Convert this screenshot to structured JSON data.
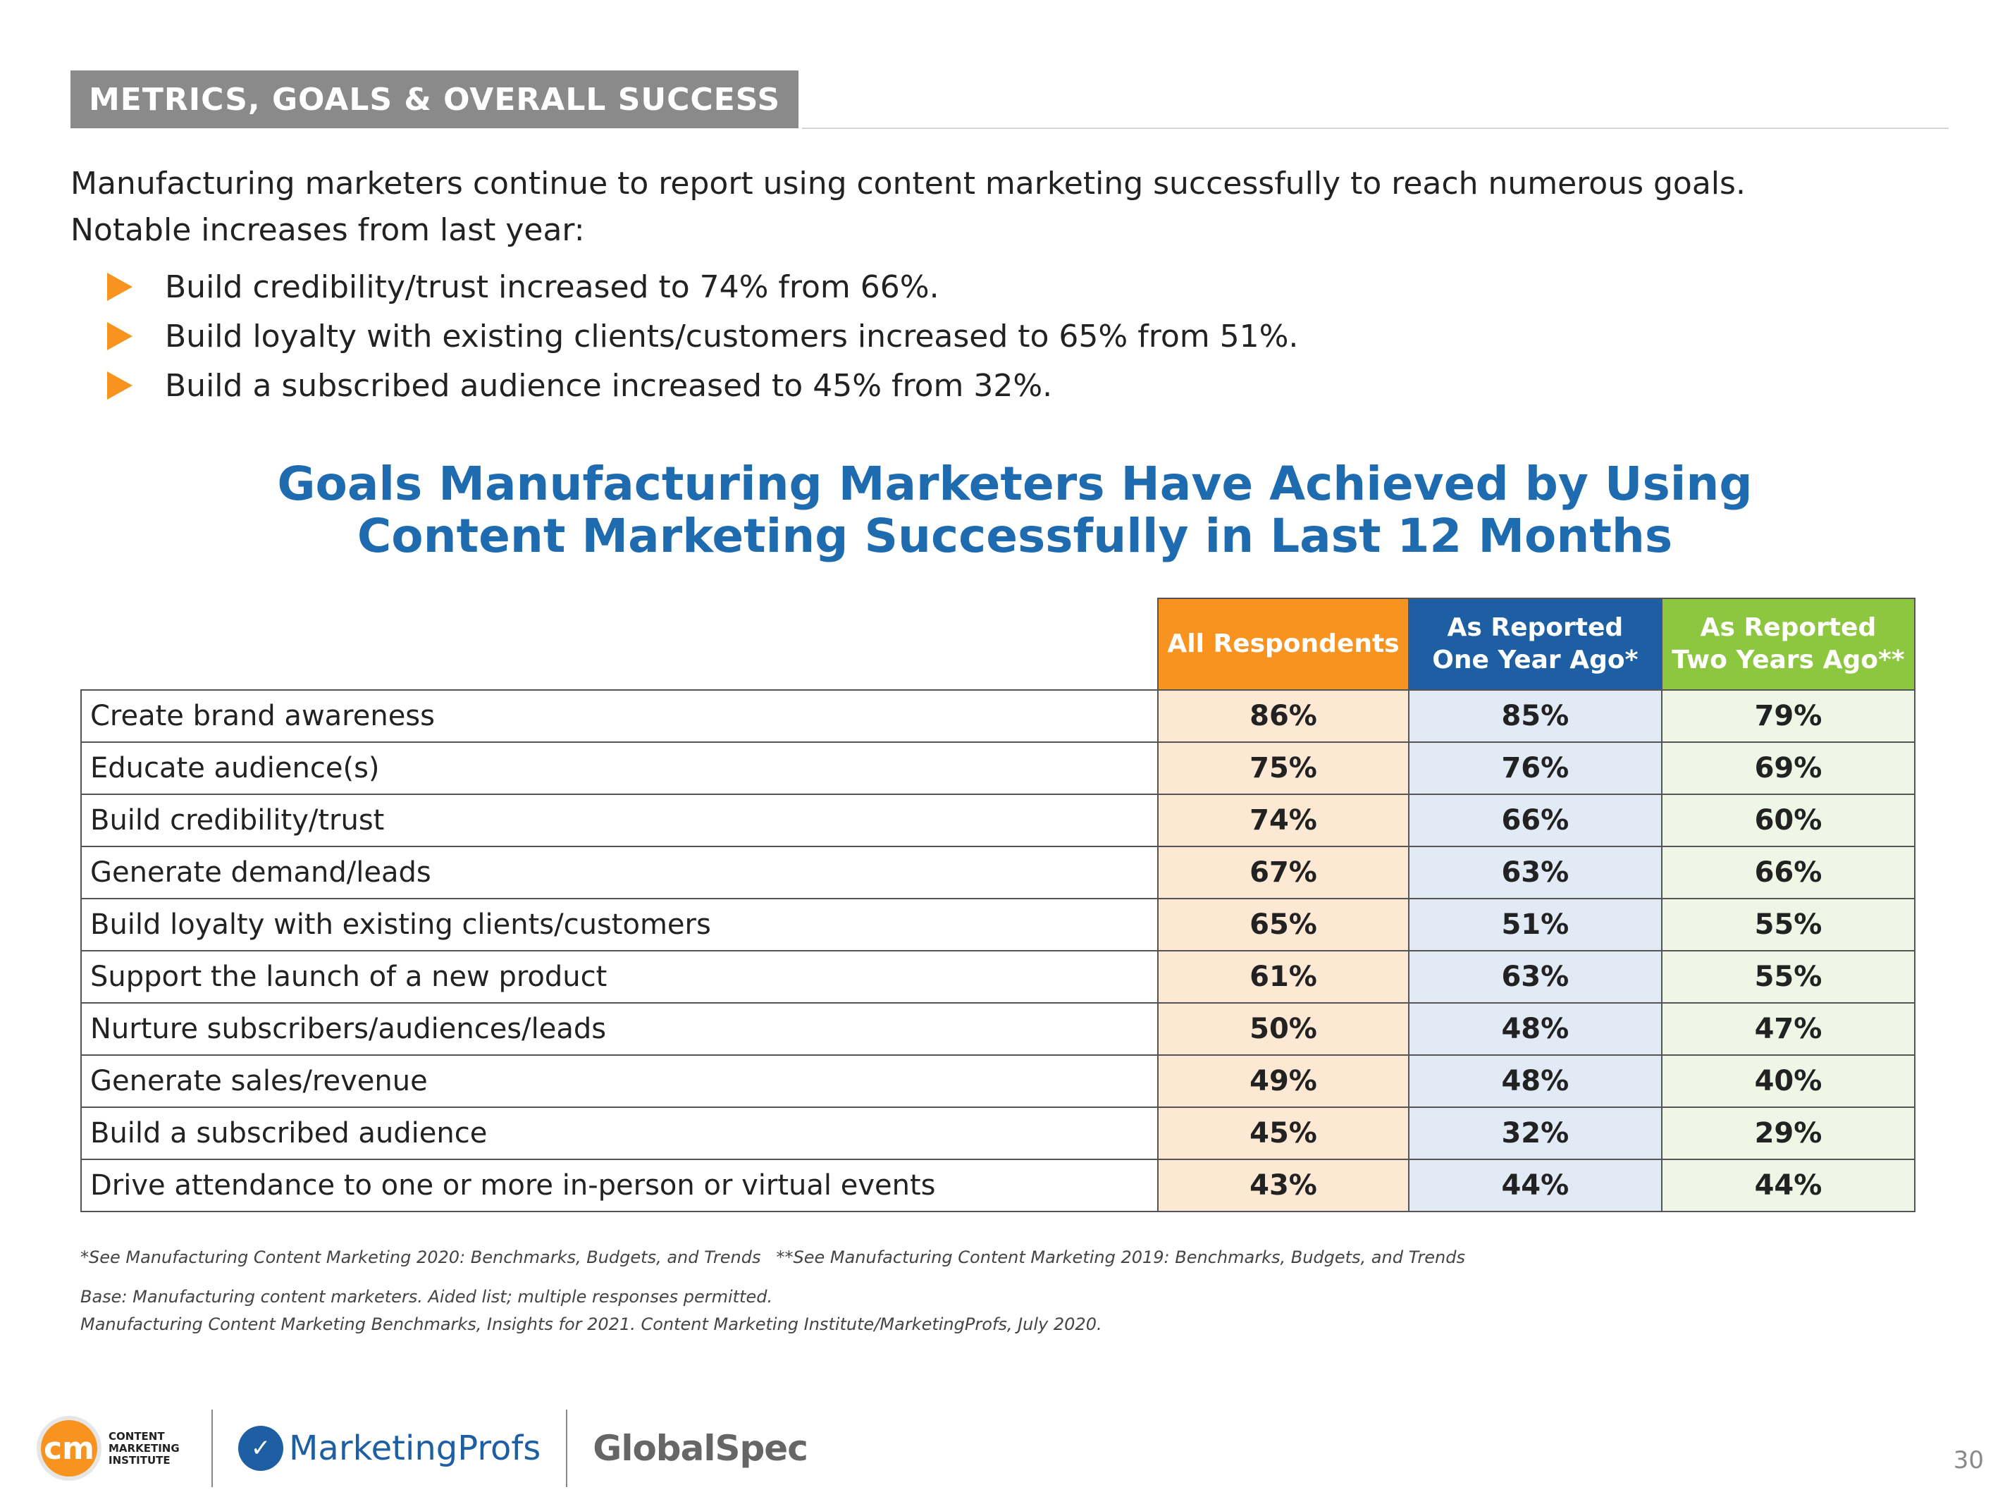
{
  "section_title": "METRICS, GOALS & OVERALL SUCCESS",
  "intro": {
    "line1": "Manufacturing marketers continue to report using content marketing successfully to reach numerous goals.",
    "line2": "Notable increases from last year:"
  },
  "bullets": [
    "Build credibility/trust increased to 74% from 66%.",
    "Build loyalty with existing clients/customers increased to 65% from 51%.",
    "Build a subscribed audience increased to 45% from 32%."
  ],
  "table": {
    "title_line1": "Goals Manufacturing Marketers Have Achieved by Using",
    "title_line2": "Content Marketing Successfully in Last 12 Months",
    "col1_header": "All Respondents",
    "col2_header_line1": "As Reported",
    "col2_header_line2": "One Year Ago*",
    "col3_header_line1": "As Reported",
    "col3_header_line2": "Two Years Ago**",
    "rows": [
      {
        "label": "Create brand awareness",
        "all": "86%",
        "one_year": "85%",
        "two_years": "79%"
      },
      {
        "label": "Educate audience(s)",
        "all": "75%",
        "one_year": "76%",
        "two_years": "69%"
      },
      {
        "label": "Build credibility/trust",
        "all": "74%",
        "one_year": "66%",
        "two_years": "60%"
      },
      {
        "label": "Generate demand/leads",
        "all": "67%",
        "one_year": "63%",
        "two_years": "66%"
      },
      {
        "label": "Build loyalty with existing clients/customers",
        "all": "65%",
        "one_year": "51%",
        "two_years": "55%"
      },
      {
        "label": "Support the launch of a new product",
        "all": "61%",
        "one_year": "63%",
        "two_years": "55%"
      },
      {
        "label": "Nurture subscribers/audiences/leads",
        "all": "50%",
        "one_year": "48%",
        "two_years": "47%"
      },
      {
        "label": "Generate sales/revenue",
        "all": "49%",
        "one_year": "48%",
        "two_years": "40%"
      },
      {
        "label": "Build a subscribed audience",
        "all": "45%",
        "one_year": "32%",
        "two_years": "29%"
      },
      {
        "label": "Drive attendance to one or more in-person or virtual events",
        "all": "43%",
        "one_year": "44%",
        "two_years": "44%"
      }
    ]
  },
  "footnotes": {
    "note1a": "*See Manufacturing Content Marketing 2020: Benchmarks, Budgets, and Trends",
    "note1b": "**See Manufacturing Content Marketing 2019: Benchmarks, Budgets, and Trends",
    "base": "Base: Manufacturing content marketers. Aided list; multiple responses permitted.",
    "source": "Manufacturing Content Marketing Benchmarks, Insights for 2021. Content Marketing Institute/MarketingProfs, July 2020."
  },
  "logos": {
    "cmi_mark": "cm",
    "cmi_line1": "CONTENT",
    "cmi_line2": "MARKETING",
    "cmi_line3": "INSTITUTE",
    "marketingprofs": "MarketingProfs",
    "globalspec": "GlobalSpec"
  },
  "colors": {
    "orange": "#f7931e",
    "blue": "#1e5fa4",
    "green": "#8dc63f",
    "title_blue": "#1f6bb0",
    "banner_gray": "#8a8a8a"
  },
  "page_number": "30"
}
